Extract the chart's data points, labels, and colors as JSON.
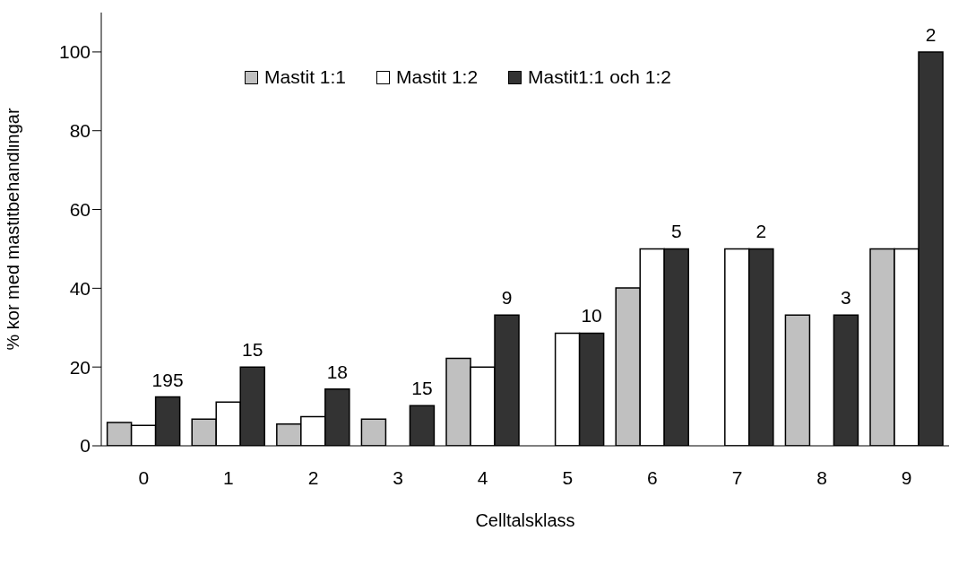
{
  "chart_data": {
    "type": "bar",
    "xlabel": "Celltalsklass",
    "ylabel": "% kor med mastitbehandlingar",
    "categories": [
      "0",
      "1",
      "2",
      "3",
      "4",
      "5",
      "6",
      "7",
      "8",
      "9"
    ],
    "series": [
      {
        "name": "Mastit 1:1",
        "color": "#c0c0c0",
        "values": [
          5.9,
          6.8,
          5.5,
          6.8,
          22.2,
          null,
          40.1,
          null,
          33.2,
          50
        ]
      },
      {
        "name": "Mastit 1:2",
        "color": "#ffffff",
        "values": [
          5.2,
          11.1,
          7.4,
          null,
          20,
          28.6,
          50,
          50,
          null,
          50
        ]
      },
      {
        "name": "Mastit1:1 och 1:2",
        "color": "#333333",
        "values": [
          12.4,
          20,
          14.4,
          10.2,
          33.2,
          28.6,
          50,
          50,
          33.2,
          100
        ]
      }
    ],
    "annotations": [
      "195",
      "15",
      "18",
      "15",
      "9",
      "10",
      "5",
      "2",
      "3",
      "2"
    ],
    "ylim": [
      0,
      110
    ],
    "yticks": [
      0,
      20,
      40,
      60,
      80,
      100
    ],
    "grid": false,
    "legend": "top"
  }
}
